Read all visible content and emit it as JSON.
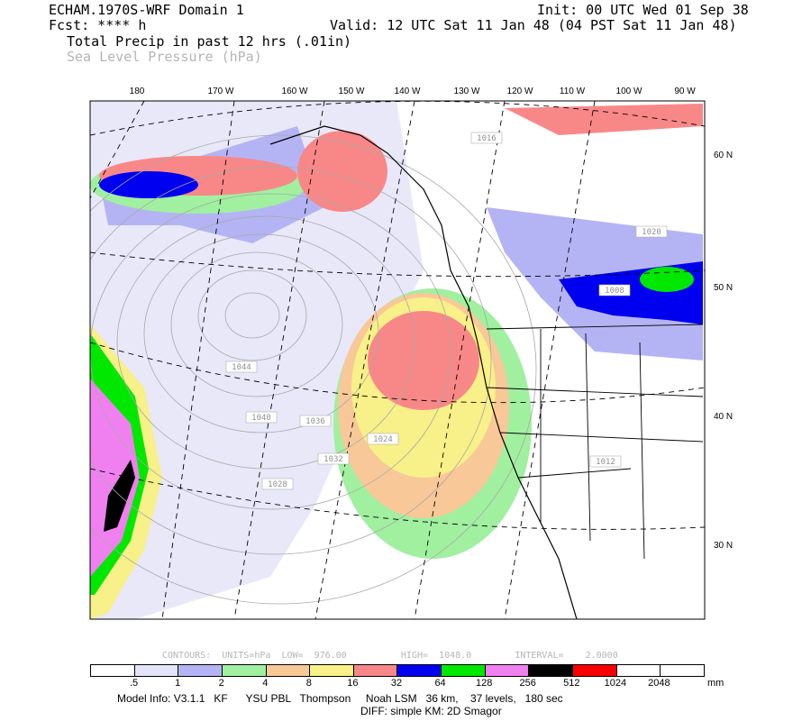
{
  "header": {
    "model_title": "ECHAM.1970S-WRF Domain 1",
    "init": "Init: 00 UTC Wed 01 Sep 38",
    "fcst": "Fcst: **** h",
    "valid": "Valid: 12 UTC Sat 11 Jan 48 (04 PST Sat 11 Jan 48)",
    "field_primary": "Total Precip in past 12 hrs (.01in)",
    "field_secondary": "Sea Level Pressure (hPa)"
  },
  "map": {
    "lon_labels": [
      "180",
      "170 W",
      "160 W",
      "150 W",
      "140 W",
      "130 W",
      "120 W",
      "110 W",
      "100 W",
      "90 W"
    ],
    "lat_labels": [
      "60 N",
      "50 N",
      "40 N",
      "30 N"
    ],
    "pressure_labels": [
      "1016",
      "1020",
      "1024",
      "1028",
      "1032",
      "1036",
      "1040",
      "1044",
      "1008",
      "1012"
    ],
    "colors": {
      "c1": "#e4e4f8",
      "c2": "#b4b4f4",
      "c3": "#a0f0a0",
      "c4": "#f8c898",
      "c5": "#f8f088",
      "c6": "#f88888",
      "c7": "#0000f0",
      "c8": "#00e800",
      "c9": "#f080f0",
      "c10": "#000000",
      "c11": "#f80000"
    }
  },
  "contours": {
    "text": "CONTOURS:  UNITS=hPa  LOW=  976.00          HIGH=  1048.0        INTERVAL=    2.0000"
  },
  "colorbar": {
    "colors": [
      "#ffffff",
      "#e4e4f8",
      "#b4b4f4",
      "#a0f0a0",
      "#f8c898",
      "#f8f088",
      "#f88888",
      "#0000f0",
      "#00e800",
      "#f080f0",
      "#000000",
      "#f80000",
      "#ffffff",
      "#ffffff"
    ],
    "labels": [
      ".5",
      "1",
      "2",
      "4",
      "8",
      "16",
      "32",
      "64",
      "128",
      "256",
      "512",
      "1024",
      "2048"
    ],
    "units": "mm"
  },
  "footer": {
    "model_info": "Model Info: V3.1.1   KF      YSU PBL   Thompson     Noah LSM   36 km,    37 levels,   180 sec",
    "diff": "DIFF: simple KM: 2D Smagor"
  }
}
